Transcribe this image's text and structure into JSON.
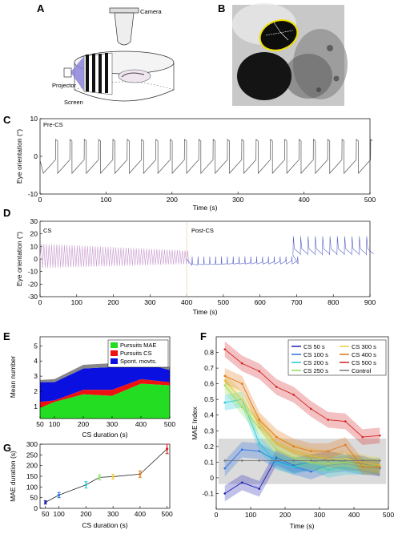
{
  "panels": {
    "a": {
      "label": "A",
      "camera": "Camera",
      "projector": "Projector",
      "screen": "Screen"
    },
    "b": {
      "label": "B"
    },
    "c": {
      "label": "C",
      "tag": "Pre-CS",
      "chart_data": {
        "type": "line",
        "xlabel": "Time (s)",
        "ylabel": "Eye orientation (°)",
        "xlim": [
          0,
          500
        ],
        "ylim": [
          -10,
          10
        ],
        "xticks": [
          0,
          100,
          200,
          300,
          400,
          500
        ],
        "yticks": [
          10,
          0,
          -10
        ],
        "pursuit_period_s": 21.7,
        "amplitude_deg": 4.5,
        "color": "#555555"
      }
    },
    "d": {
      "label": "D",
      "tag_left": "CS",
      "tag_right": "Post-CS",
      "chart_data": {
        "type": "line",
        "xlabel": "Time (s)",
        "ylabel": "Eye orientation (°)",
        "xlim": [
          0,
          900
        ],
        "ylim": [
          -30,
          30
        ],
        "xticks": [
          0,
          100,
          200,
          300,
          400,
          500,
          600,
          700,
          800,
          900
        ],
        "yticks": [
          30,
          20,
          10,
          0,
          -10,
          -20,
          -30
        ],
        "cs_end_s": 400,
        "cs_color": "#c99ad0",
        "post_color": "#5560c8",
        "late_color": "#7070cc"
      }
    },
    "e": {
      "label": "E",
      "chart_data": {
        "type": "area",
        "xlabel": "CS duration (s)",
        "ylabel": "Mean number",
        "x": [
          50,
          100,
          200,
          300,
          400,
          500
        ],
        "xticks": [
          50,
          100,
          200,
          300,
          400,
          500
        ],
        "yticks": [
          1,
          2,
          3,
          4,
          5
        ],
        "ylim": [
          0.2,
          5.6
        ],
        "series": [
          {
            "name": "Pursuits MAE",
            "color": "#22dd22",
            "values": [
              0.9,
              1.3,
              1.8,
              1.7,
              2.5,
              2.4
            ]
          },
          {
            "name": "Pursuits CS",
            "color": "#ee1111",
            "values": [
              0.4,
              0.1,
              0.3,
              0.4,
              0.3,
              0.2
            ]
          },
          {
            "name": "Spont. movts.",
            "color": "#0a10e0",
            "values": [
              1.3,
              1.2,
              1.4,
              1.5,
              1.1,
              0.8
            ]
          }
        ],
        "top_band_color": "#888888",
        "top_band": [
          0.15,
          0.2,
          0.25,
          0.25,
          0.25,
          0.2
        ]
      }
    },
    "f": {
      "label": "F",
      "chart_data": {
        "type": "line",
        "xlabel": "Time (s)",
        "ylabel": "MAE Index",
        "xlim": [
          0,
          500
        ],
        "ylim": [
          -0.2,
          0.9
        ],
        "xticks": [
          0,
          100,
          200,
          300,
          400,
          500
        ],
        "yticks": [
          -0.1,
          0,
          0.1,
          0.2,
          0.3,
          0.4,
          0.5,
          0.6,
          0.7,
          0.8
        ],
        "x": [
          25,
          75,
          125,
          175,
          225,
          275,
          325,
          375,
          425,
          475
        ],
        "control_band": [
          -0.04,
          0.25
        ],
        "series": [
          {
            "name": "CS 50 s",
            "color": "#2020b0",
            "values": [
              -0.1,
              -0.03,
              -0.07,
              0.13,
              0.08,
              0.1,
              0.12,
              0.1,
              0.09,
              0.06
            ]
          },
          {
            "name": "CS 100 s",
            "color": "#2a70e0",
            "values": [
              0.06,
              0.18,
              0.17,
              0.11,
              0.07,
              0.04,
              0.08,
              0.09,
              0.07,
              0.06
            ]
          },
          {
            "name": "CS 200 s",
            "color": "#22c8d8",
            "values": [
              0.48,
              0.5,
              0.22,
              0.1,
              0.07,
              0.1,
              0.05,
              0.07,
              0.07,
              0.08
            ]
          },
          {
            "name": "CS 250 s",
            "color": "#88e068",
            "values": [
              0.59,
              0.45,
              0.32,
              0.18,
              0.13,
              0.1,
              0.09,
              0.1,
              0.08,
              0.07
            ]
          },
          {
            "name": "CS 300 s",
            "color": "#e8d040",
            "values": [
              0.62,
              0.5,
              0.35,
              0.22,
              0.17,
              0.14,
              0.12,
              0.12,
              0.1,
              0.08
            ]
          },
          {
            "name": "CS 400 s",
            "color": "#e07818",
            "values": [
              0.65,
              0.6,
              0.37,
              0.26,
              0.2,
              0.17,
              0.17,
              0.21,
              0.07,
              0.07
            ]
          },
          {
            "name": "CS 500 s",
            "color": "#d42020",
            "values": [
              0.82,
              0.73,
              0.68,
              0.58,
              0.53,
              0.44,
              0.37,
              0.36,
              0.26,
              0.27
            ]
          },
          {
            "name": "Control",
            "color": "#777777",
            "values": [
              0.11,
              0.11,
              0.11,
              0.11,
              0.11,
              0.11,
              0.11,
              0.11,
              0.11,
              0.11
            ]
          }
        ]
      }
    },
    "g": {
      "label": "G",
      "chart_data": {
        "type": "scatter",
        "xlabel": "CS duration (s)",
        "ylabel": "MAE duration (s)",
        "x": [
          50,
          100,
          200,
          250,
          300,
          400,
          500
        ],
        "y": [
          28,
          62,
          110,
          145,
          148,
          160,
          278
        ],
        "err": [
          8,
          12,
          15,
          12,
          12,
          15,
          22
        ],
        "colors": [
          "#2020b0",
          "#2a70e0",
          "#22c8d8",
          "#88e068",
          "#e8d040",
          "#e07818",
          "#d42020"
        ],
        "xticks": [
          50,
          100,
          200,
          300,
          400,
          500
        ],
        "yticks": [
          0,
          50,
          100,
          150,
          200,
          250,
          300
        ],
        "xlim": [
          30,
          510
        ],
        "ylim": [
          0,
          300
        ]
      }
    }
  }
}
